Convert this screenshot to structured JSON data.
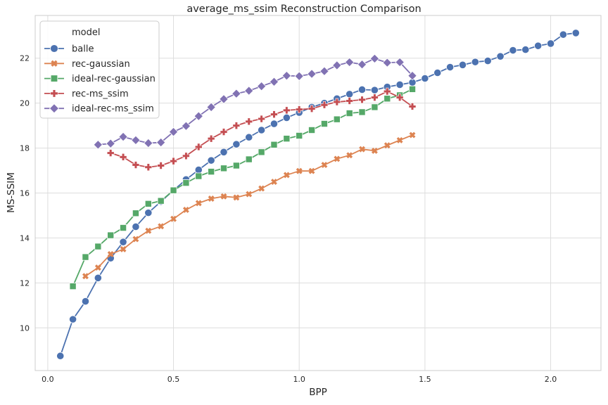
{
  "chart_data": {
    "type": "line",
    "title": "average_ms_ssim Reconstruction Comparison",
    "xlabel": "BPP",
    "ylabel": "MS-SSIM",
    "xlim": [
      -0.05,
      2.2
    ],
    "ylim": [
      8.1,
      23.9
    ],
    "xticks": [
      0.0,
      0.5,
      1.0,
      1.5,
      2.0
    ],
    "xtick_labels": [
      "0.0",
      "0.5",
      "1.0",
      "1.5",
      "2.0"
    ],
    "yticks": [
      10,
      12,
      14,
      16,
      18,
      20,
      22
    ],
    "ytick_labels": [
      "10",
      "12",
      "14",
      "16",
      "18",
      "20",
      "22"
    ],
    "grid": true,
    "legend": {
      "title": "model",
      "placement": "top-left"
    },
    "series": [
      {
        "name": "balle",
        "color": "#4c72b0",
        "marker": "circle",
        "x": [
          0.05,
          0.1,
          0.15,
          0.2,
          0.25,
          0.3,
          0.35,
          0.4,
          0.45,
          0.5,
          0.55,
          0.6,
          0.65,
          0.7,
          0.75,
          0.8,
          0.85,
          0.9,
          0.95,
          1.0,
          1.05,
          1.1,
          1.15,
          1.2,
          1.25,
          1.3,
          1.35,
          1.4,
          1.45,
          1.5,
          1.55,
          1.6,
          1.65,
          1.7,
          1.75,
          1.8,
          1.85,
          1.9,
          1.95,
          2.0,
          2.05,
          2.1
        ],
        "y": [
          8.75,
          10.38,
          11.18,
          12.22,
          13.1,
          13.82,
          14.5,
          15.12,
          15.62,
          16.12,
          16.6,
          17.03,
          17.45,
          17.82,
          18.17,
          18.48,
          18.8,
          19.08,
          19.35,
          19.58,
          19.82,
          20.0,
          20.2,
          20.4,
          20.6,
          20.58,
          20.72,
          20.82,
          20.92,
          21.1,
          21.35,
          21.6,
          21.7,
          21.83,
          21.88,
          22.08,
          22.35,
          22.38,
          22.55,
          22.65,
          23.05,
          23.12
        ]
      },
      {
        "name": "rec-gaussian",
        "color": "#dd8452",
        "marker": "x",
        "x": [
          0.15,
          0.2,
          0.25,
          0.3,
          0.35,
          0.4,
          0.45,
          0.5,
          0.55,
          0.6,
          0.65,
          0.7,
          0.75,
          0.8,
          0.85,
          0.9,
          0.95,
          1.0,
          1.05,
          1.1,
          1.15,
          1.2,
          1.25,
          1.3,
          1.35,
          1.4,
          1.45
        ],
        "y": [
          12.3,
          12.68,
          13.28,
          13.5,
          13.95,
          14.32,
          14.52,
          14.85,
          15.25,
          15.55,
          15.75,
          15.85,
          15.8,
          15.95,
          16.2,
          16.5,
          16.8,
          16.98,
          16.98,
          17.25,
          17.52,
          17.68,
          17.95,
          17.88,
          18.12,
          18.35,
          18.58
        ]
      },
      {
        "name": "ideal-rec-gaussian",
        "color": "#55a868",
        "marker": "square",
        "x": [
          0.1,
          0.15,
          0.2,
          0.25,
          0.3,
          0.35,
          0.4,
          0.45,
          0.5,
          0.55,
          0.6,
          0.65,
          0.7,
          0.75,
          0.8,
          0.85,
          0.9,
          0.95,
          1.0,
          1.05,
          1.1,
          1.15,
          1.2,
          1.25,
          1.3,
          1.35,
          1.4,
          1.45
        ],
        "y": [
          11.85,
          13.15,
          13.62,
          14.12,
          14.45,
          15.1,
          15.52,
          15.65,
          16.12,
          16.45,
          16.75,
          16.95,
          17.1,
          17.22,
          17.5,
          17.82,
          18.15,
          18.42,
          18.55,
          18.8,
          19.08,
          19.28,
          19.55,
          19.6,
          19.82,
          20.2,
          20.35,
          20.62
        ]
      },
      {
        "name": "rec-ms_ssim",
        "color": "#c44e52",
        "marker": "plus",
        "x": [
          0.25,
          0.3,
          0.35,
          0.4,
          0.45,
          0.5,
          0.55,
          0.6,
          0.65,
          0.7,
          0.75,
          0.8,
          0.85,
          0.9,
          0.95,
          1.0,
          1.05,
          1.1,
          1.15,
          1.2,
          1.25,
          1.3,
          1.35,
          1.4,
          1.45
        ],
        "y": [
          17.78,
          17.6,
          17.25,
          17.15,
          17.22,
          17.42,
          17.65,
          18.05,
          18.42,
          18.72,
          19.0,
          19.18,
          19.3,
          19.5,
          19.68,
          19.72,
          19.75,
          19.92,
          20.05,
          20.1,
          20.15,
          20.25,
          20.52,
          20.25,
          19.85
        ]
      },
      {
        "name": "ideal-rec-ms_ssim",
        "color": "#8172b3",
        "marker": "diamond",
        "x": [
          0.2,
          0.25,
          0.3,
          0.35,
          0.4,
          0.45,
          0.5,
          0.55,
          0.6,
          0.65,
          0.7,
          0.75,
          0.8,
          0.85,
          0.9,
          0.95,
          1.0,
          1.05,
          1.1,
          1.15,
          1.2,
          1.25,
          1.3,
          1.35,
          1.4,
          1.45
        ],
        "y": [
          18.15,
          18.2,
          18.5,
          18.35,
          18.22,
          18.25,
          18.72,
          18.98,
          19.42,
          19.82,
          20.18,
          20.42,
          20.55,
          20.75,
          20.95,
          21.22,
          21.2,
          21.3,
          21.42,
          21.68,
          21.82,
          21.72,
          21.98,
          21.8,
          21.82,
          21.22
        ]
      }
    ]
  }
}
